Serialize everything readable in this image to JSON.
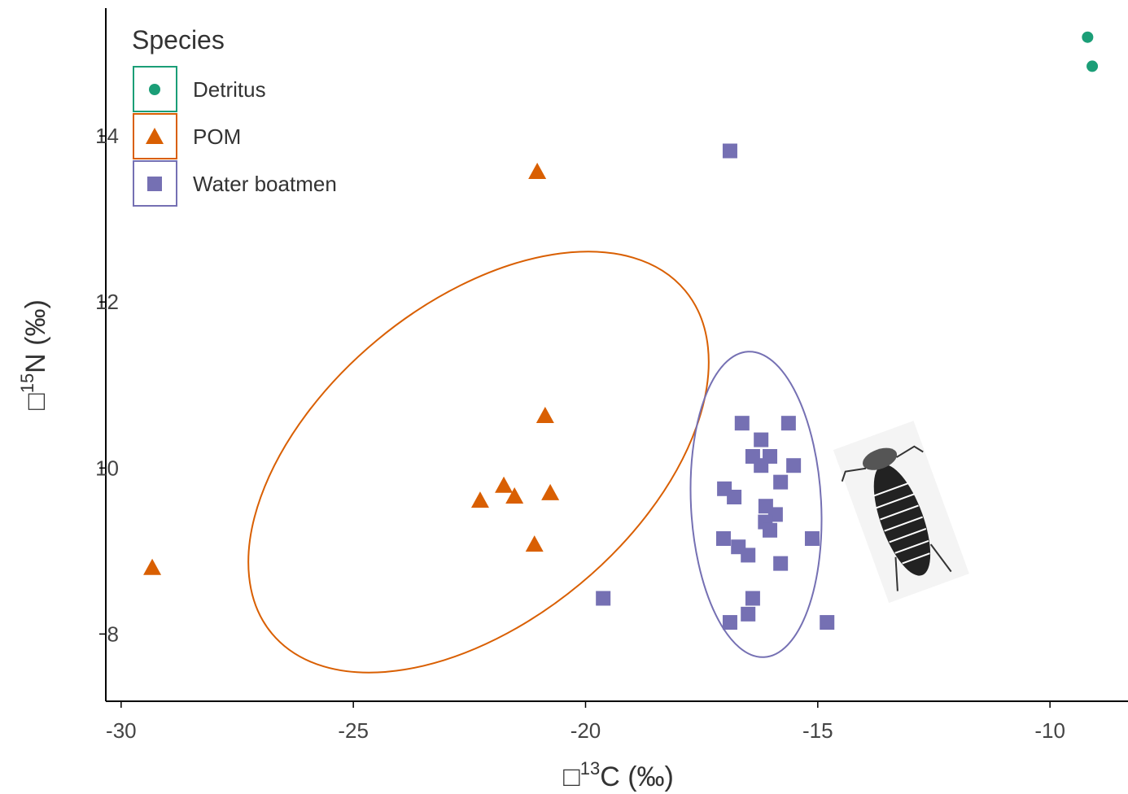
{
  "chart_data": {
    "type": "scatter",
    "xlabel": [
      "□",
      "13",
      "C (‰)"
    ],
    "ylabel": [
      "□",
      "15",
      "N (‰)"
    ],
    "legend_title": "Species",
    "legend": "top-left",
    "xlim": [
      -30.33,
      -8.32
    ],
    "ylim": [
      7.19,
      15.54
    ],
    "xticks": [
      -30,
      -25,
      -20,
      -15,
      -10
    ],
    "yticks": [
      8,
      10,
      12,
      14
    ],
    "series": [
      {
        "name": "Detritus",
        "color": "#1b9e77",
        "marker": "circle",
        "x": [
          -9.19,
          -9.09
        ],
        "values": [
          15.19,
          14.84
        ]
      },
      {
        "name": "POM",
        "color": "#d95f02",
        "marker": "triangle",
        "x": [
          -29.33,
          -21.04,
          -20.87,
          -21.76,
          -22.27,
          -21.53,
          -20.76,
          -21.1
        ],
        "values": [
          8.8,
          13.57,
          10.63,
          9.79,
          9.61,
          9.66,
          9.7,
          9.08
        ]
      },
      {
        "name": "Water boatmen",
        "color": "#7570b3",
        "marker": "square",
        "x": [
          -16.89,
          -16.63,
          -15.63,
          -16.22,
          -16.4,
          -16.03,
          -16.22,
          -15.52,
          -15.8,
          -17.01,
          -16.8,
          -16.12,
          -15.91,
          -16.13,
          -16.03,
          -17.03,
          -15.12,
          -16.71,
          -16.5,
          -15.8,
          -19.62,
          -16.4,
          -16.5,
          -16.89,
          -14.8
        ],
        "values": [
          13.82,
          10.54,
          10.54,
          10.34,
          10.14,
          10.14,
          10.03,
          10.03,
          9.83,
          9.75,
          9.65,
          9.54,
          9.44,
          9.35,
          9.25,
          9.15,
          9.15,
          9.05,
          8.95,
          8.85,
          8.43,
          8.43,
          8.24,
          8.14,
          8.14
        ]
      }
    ]
  }
}
